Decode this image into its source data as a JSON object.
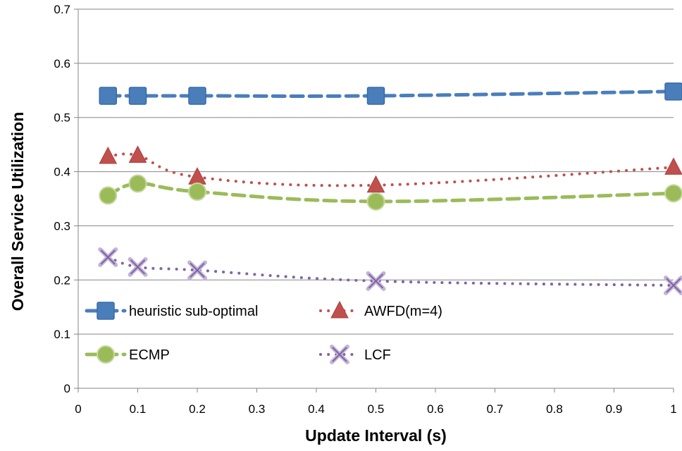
{
  "chart_data": {
    "type": "line",
    "title": "",
    "xlabel": "Update Interval (s)",
    "ylabel": "Overall Service Utilization",
    "xlim": [
      0,
      1
    ],
    "ylim": [
      0,
      0.7
    ],
    "x_ticks": [
      "0",
      "0.1",
      "0.2",
      "0.3",
      "0.4",
      "0.5",
      "0.6",
      "0.7",
      "0.8",
      "0.9",
      "1"
    ],
    "y_ticks": [
      "0",
      "0.1",
      "0.2",
      "0.3",
      "0.4",
      "0.5",
      "0.6",
      "0.7"
    ],
    "grid": "horizontal",
    "legend_position": "bottom-left",
    "x": [
      0.05,
      0.1,
      0.2,
      0.5,
      1
    ],
    "series": [
      {
        "name": "heuristic sub-optimal",
        "values": [
          0.54,
          0.54,
          0.54,
          0.54,
          0.548
        ],
        "color": "#4A7EBB",
        "marker": "square",
        "line": "dashed"
      },
      {
        "name": "AWFD(m=4)",
        "values": [
          0.428,
          0.43,
          0.39,
          0.375,
          0.408
        ],
        "color": "#C0504D",
        "marker": "triangle",
        "line": "dotted"
      },
      {
        "name": "ECMP",
        "values": [
          0.356,
          0.378,
          0.363,
          0.345,
          0.36
        ],
        "color": "#9BBB59",
        "marker": "circle",
        "line": "dashed"
      },
      {
        "name": "LCF",
        "values": [
          0.242,
          0.224,
          0.218,
          0.198,
          0.19
        ],
        "color": "#8064A2",
        "marker": "x",
        "line": "dotted"
      }
    ]
  }
}
